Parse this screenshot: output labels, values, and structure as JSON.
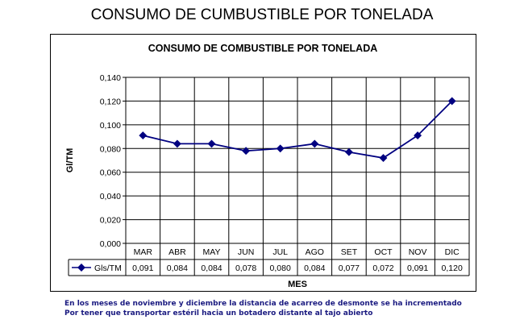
{
  "page_title": "CONSUMO DE CUMBUSTIBLE POR TONELADA",
  "footnote": {
    "line1": "En los meses de noviembre y diciembre la distancia de acarreo de desmonte se ha incrementado",
    "line2": "Por tener que transportar estéril hacia un botadero distante al tajo abierto"
  },
  "chart_data": {
    "type": "line",
    "title": "CONSUMO DE COMBUSTIBLE POR TONELADA",
    "xlabel": "MES",
    "ylabel": "Gl/TM",
    "categories": [
      "MAR",
      "ABR",
      "MAY",
      "JUN",
      "JUL",
      "AGO",
      "SET",
      "OCT",
      "NOV",
      "DIC"
    ],
    "series": [
      {
        "name": "Gls/TM",
        "values": [
          0.091,
          0.084,
          0.084,
          0.078,
          0.08,
          0.084,
          0.077,
          0.072,
          0.091,
          0.12
        ],
        "labels": [
          "0,091",
          "0,084",
          "0,084",
          "0,078",
          "0,080",
          "0,084",
          "0,077",
          "0,072",
          "0,091",
          "0,120"
        ],
        "color": "#000080"
      }
    ],
    "ylim": [
      0,
      0.14
    ],
    "yticks": [
      0,
      0.02,
      0.04,
      0.06,
      0.08,
      0.1,
      0.12,
      0.14
    ],
    "ytick_labels": [
      "0,000",
      "0,020",
      "0,040",
      "0,060",
      "0,080",
      "0,100",
      "0,120",
      "0,140"
    ],
    "grid": true,
    "data_table": true
  }
}
